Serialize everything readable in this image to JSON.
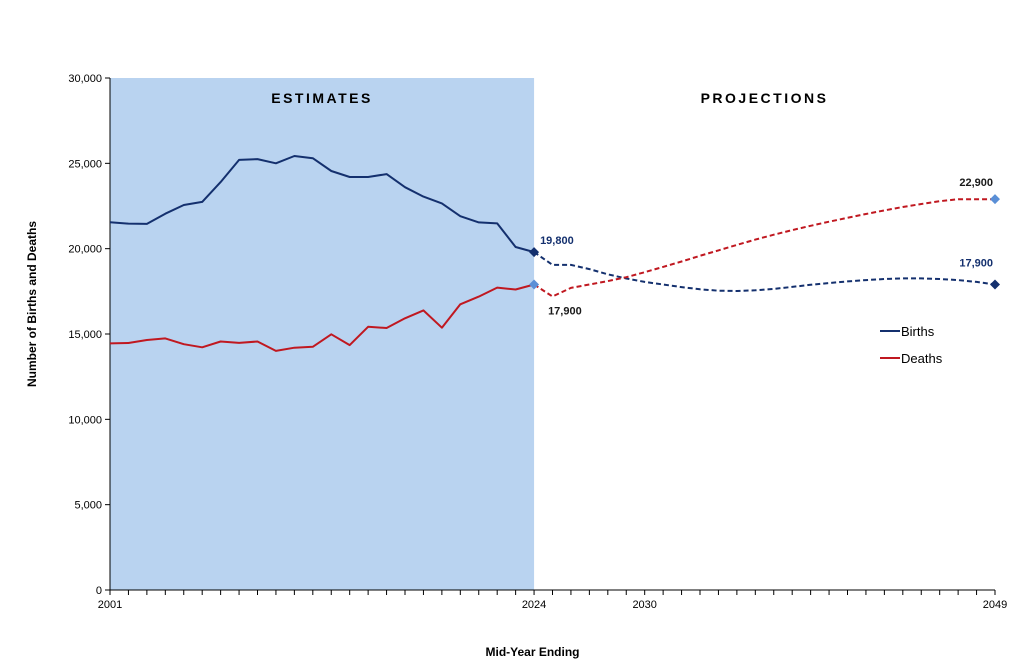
{
  "chart_data": {
    "type": "line",
    "xlabel": "Mid-Year Ending",
    "ylabel": "Number of Births and Deaths",
    "xlim": [
      2001,
      2049
    ],
    "ylim": [
      0,
      30000
    ],
    "x_tick_labels": [
      "2001",
      "2024",
      "2030",
      "2049"
    ],
    "y_tick_labels": [
      "0",
      "5,000",
      "10,000",
      "15,000",
      "20,000",
      "25,000",
      "30,000"
    ],
    "regions": [
      {
        "label": "ESTIMATES",
        "from": 2001,
        "to": 2024,
        "color": "#b9d3f0"
      },
      {
        "label": "PROJECTIONS",
        "from": 2024,
        "to": 2049
      }
    ],
    "legend_position": "right",
    "series": [
      {
        "name": "Births",
        "color": "#14306e",
        "estimates": {
          "x": [
            2001,
            2002,
            2003,
            2004,
            2005,
            2006,
            2007,
            2008,
            2009,
            2010,
            2011,
            2012,
            2013,
            2014,
            2015,
            2016,
            2017,
            2018,
            2019,
            2020,
            2021,
            2022,
            2023,
            2024
          ],
          "y": [
            21550,
            21470,
            21450,
            22050,
            22560,
            22740,
            23900,
            25200,
            25250,
            25000,
            25430,
            25300,
            24550,
            24200,
            24200,
            24370,
            23600,
            23050,
            22650,
            21900,
            21540,
            21480,
            20100,
            19800
          ]
        },
        "projections": {
          "x": [
            2024,
            2025,
            2026,
            2027,
            2028,
            2029,
            2030,
            2031,
            2032,
            2033,
            2034,
            2035,
            2036,
            2037,
            2038,
            2039,
            2040,
            2041,
            2042,
            2043,
            2044,
            2045,
            2046,
            2047,
            2048,
            2049
          ],
          "y": [
            19800,
            19050,
            19050,
            18800,
            18500,
            18250,
            18050,
            17900,
            17750,
            17620,
            17540,
            17520,
            17560,
            17640,
            17760,
            17880,
            17990,
            18080,
            18160,
            18220,
            18260,
            18260,
            18220,
            18160,
            18050,
            17900
          ]
        }
      },
      {
        "name": "Deaths",
        "color": "#c01820",
        "estimates": {
          "x": [
            2001,
            2002,
            2003,
            2004,
            2005,
            2006,
            2007,
            2008,
            2009,
            2010,
            2011,
            2012,
            2013,
            2014,
            2015,
            2016,
            2017,
            2018,
            2019,
            2020,
            2021,
            2022,
            2023,
            2024
          ],
          "y": [
            14450,
            14470,
            14650,
            14740,
            14400,
            14220,
            14560,
            14480,
            14560,
            14010,
            14200,
            14250,
            14980,
            14350,
            15420,
            15350,
            15920,
            16380,
            15370,
            16740,
            17190,
            17720,
            17610,
            17900
          ]
        },
        "projections": {
          "x": [
            2024,
            2025,
            2026,
            2027,
            2028,
            2029,
            2030,
            2031,
            2032,
            2033,
            2034,
            2035,
            2036,
            2037,
            2038,
            2039,
            2040,
            2041,
            2042,
            2043,
            2044,
            2045,
            2046,
            2047,
            2048,
            2049
          ],
          "y": [
            17900,
            17200,
            17700,
            17900,
            18100,
            18330,
            18620,
            18930,
            19250,
            19580,
            19900,
            20220,
            20530,
            20820,
            21090,
            21340,
            21580,
            21810,
            22030,
            22240,
            22440,
            22620,
            22780,
            22900,
            22900,
            22900
          ]
        }
      }
    ],
    "annotations": [
      {
        "text": "19,800",
        "series": "Births",
        "x": 2024,
        "y": 19800
      },
      {
        "text": "17,900",
        "series": "Deaths",
        "x": 2024,
        "y": 17900
      },
      {
        "text": "22,900",
        "series": "Deaths",
        "x": 2049,
        "y": 22900
      },
      {
        "text": "17,900",
        "series": "Births",
        "x": 2049,
        "y": 17900
      }
    ]
  }
}
